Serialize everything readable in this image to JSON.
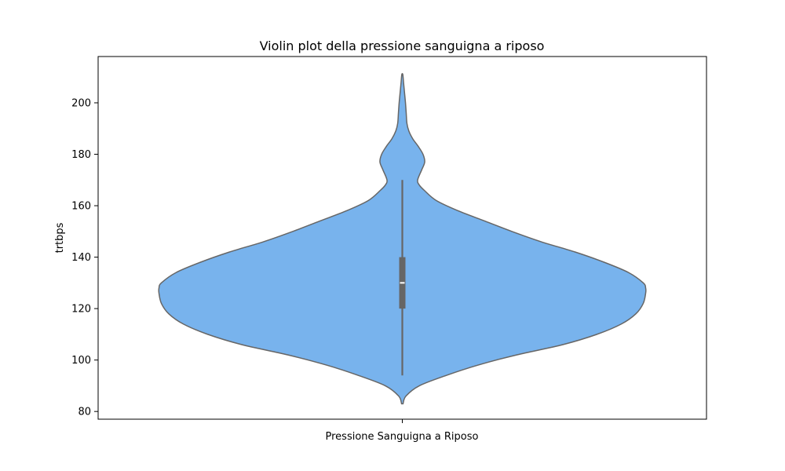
{
  "chart_data": {
    "type": "violin",
    "title": "Violin plot della pressione sanguigna a riposo",
    "xlabel": "Pressione Sanguigna a Riposo",
    "ylabel": "trtbps",
    "ylim": [
      77,
      218
    ],
    "yticks": [
      80,
      100,
      120,
      140,
      160,
      180,
      200
    ],
    "grid": false,
    "colors": {
      "fill": "#78b3ed",
      "edge": "#666666",
      "box": "#666666",
      "median": "#ffffff"
    },
    "series": [
      {
        "box": {
          "whisker_low": 94,
          "q1": 120,
          "median": 130,
          "q3": 140,
          "whisker_high": 170
        },
        "outline_max_halfwidth": 1.0,
        "outline": [
          [
            83,
            0.003
          ],
          [
            86,
            0.015
          ],
          [
            90,
            0.07
          ],
          [
            94,
            0.18
          ],
          [
            98,
            0.31
          ],
          [
            102,
            0.47
          ],
          [
            106,
            0.66
          ],
          [
            110,
            0.8
          ],
          [
            114,
            0.9
          ],
          [
            118,
            0.96
          ],
          [
            122,
            0.99
          ],
          [
            126,
            1.0
          ],
          [
            128,
            1.0
          ],
          [
            130,
            0.99
          ],
          [
            134,
            0.93
          ],
          [
            138,
            0.83
          ],
          [
            142,
            0.71
          ],
          [
            146,
            0.57
          ],
          [
            150,
            0.45
          ],
          [
            154,
            0.34
          ],
          [
            158,
            0.23
          ],
          [
            162,
            0.14
          ],
          [
            166,
            0.09
          ],
          [
            168,
            0.07
          ],
          [
            170,
            0.063
          ],
          [
            174,
            0.08
          ],
          [
            177,
            0.092
          ],
          [
            180,
            0.085
          ],
          [
            183,
            0.066
          ],
          [
            186,
            0.043
          ],
          [
            189,
            0.027
          ],
          [
            192,
            0.019
          ],
          [
            196,
            0.016
          ],
          [
            200,
            0.013
          ],
          [
            204,
            0.009
          ],
          [
            208,
            0.005
          ],
          [
            211,
            0.002
          ]
        ]
      }
    ]
  }
}
